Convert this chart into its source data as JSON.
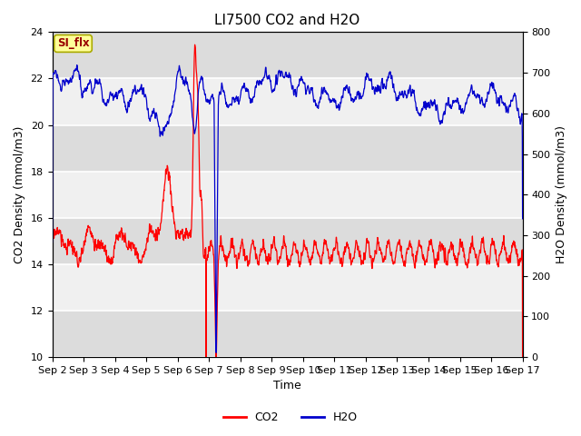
{
  "title": "LI7500 CO2 and H2O",
  "xlabel": "Time",
  "ylabel_left": "CO2 Density (mmol/m3)",
  "ylabel_right": "H2O Density (mmol/m3)",
  "ylim_left": [
    10,
    24
  ],
  "ylim_right": [
    0,
    800
  ],
  "yticks_left": [
    10,
    12,
    14,
    16,
    18,
    20,
    22,
    24
  ],
  "yticks_right": [
    0,
    100,
    200,
    300,
    400,
    500,
    600,
    700,
    800
  ],
  "xtick_labels": [
    "Sep 2",
    "Sep 3",
    "Sep 4",
    "Sep 5",
    "Sep 6",
    "Sep 7",
    "Sep 8",
    "Sep 9",
    "Sep 10",
    "Sep 11",
    "Sep 12",
    "Sep 13",
    "Sep 14",
    "Sep 15",
    "Sep 16",
    "Sep 17"
  ],
  "co2_color": "#FF0000",
  "h2o_color": "#0000CC",
  "background_color": "#FFFFFF",
  "plot_bg_light": "#F0F0F0",
  "plot_bg_dark": "#DCDCDC",
  "annotation_text": "SI_flx",
  "annotation_bg": "#FFFF99",
  "annotation_border": "#AAAA00",
  "annotation_text_color": "#990000",
  "legend_co2": "CO2",
  "legend_h2o": "H2O",
  "grid_color": "#FFFFFF",
  "title_fontsize": 11,
  "axis_label_fontsize": 9,
  "tick_fontsize": 8
}
